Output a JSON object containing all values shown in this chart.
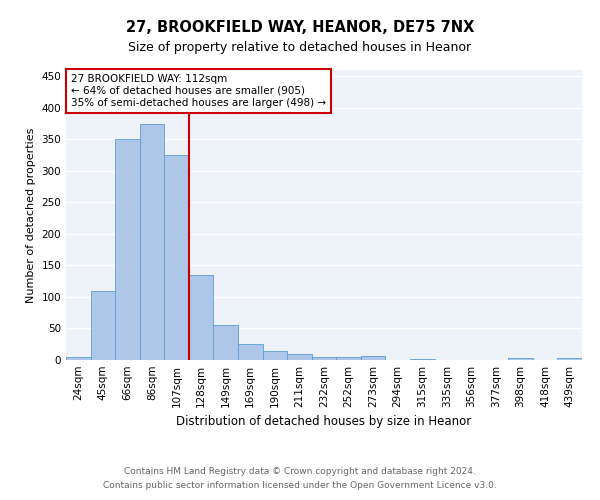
{
  "title1": "27, BROOKFIELD WAY, HEANOR, DE75 7NX",
  "title2": "Size of property relative to detached houses in Heanor",
  "xlabel": "Distribution of detached houses by size in Heanor",
  "ylabel": "Number of detached properties",
  "bar_labels": [
    "24sqm",
    "45sqm",
    "66sqm",
    "86sqm",
    "107sqm",
    "128sqm",
    "149sqm",
    "169sqm",
    "190sqm",
    "211sqm",
    "232sqm",
    "252sqm",
    "273sqm",
    "294sqm",
    "315sqm",
    "335sqm",
    "356sqm",
    "377sqm",
    "398sqm",
    "418sqm",
    "439sqm"
  ],
  "bar_values": [
    5,
    110,
    350,
    375,
    325,
    135,
    55,
    25,
    14,
    9,
    4,
    5,
    6,
    0,
    2,
    0,
    0,
    0,
    3,
    0,
    3
  ],
  "bar_color": "#aec6e8",
  "bar_edge_color": "#5a9fd4",
  "vline_x": 4.5,
  "vline_color": "#cc0000",
  "annotation_line1": "27 BROOKFIELD WAY: 112sqm",
  "annotation_line2": "← 64% of detached houses are smaller (905)",
  "annotation_line3": "35% of semi-detached houses are larger (498) →",
  "ylim": [
    0,
    460
  ],
  "yticks": [
    0,
    50,
    100,
    150,
    200,
    250,
    300,
    350,
    400,
    450
  ],
  "footer1": "Contains HM Land Registry data © Crown copyright and database right 2024.",
  "footer2": "Contains public sector information licensed under the Open Government Licence v3.0.",
  "bg_color": "#eef2f9",
  "grid_color": "#ffffff",
  "title1_fontsize": 10.5,
  "title2_fontsize": 9,
  "ylabel_fontsize": 8,
  "xlabel_fontsize": 8.5,
  "tick_fontsize": 7.5,
  "annotation_fontsize": 7.5,
  "footer_fontsize": 6.5
}
